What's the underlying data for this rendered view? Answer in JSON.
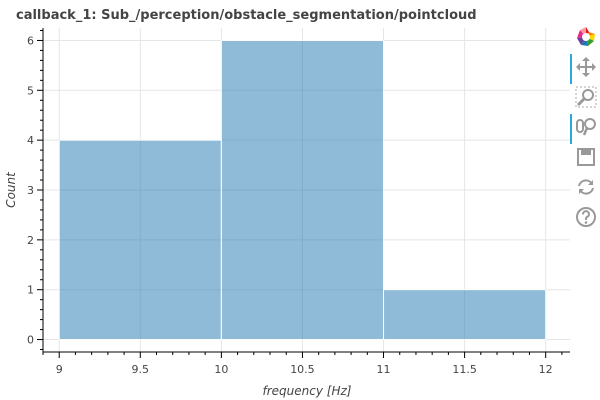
{
  "title": "callback_1: Sub_/perception/obstacle_segmentation/pointcloud",
  "chart_data": {
    "type": "histogram",
    "bins": [
      {
        "left": 9,
        "right": 10,
        "count": 4
      },
      {
        "left": 10,
        "right": 11,
        "count": 6
      },
      {
        "left": 11,
        "right": 12,
        "count": 1
      }
    ],
    "xlabel": "frequency [Hz]",
    "ylabel": "Count",
    "xlim": [
      8.9,
      12.15
    ],
    "ylim": [
      -0.25,
      6.25
    ],
    "x_ticks": [
      "9",
      "9.5",
      "10",
      "10.5",
      "11",
      "11.5",
      "12"
    ],
    "y_ticks": [
      "0",
      "1",
      "2",
      "3",
      "4",
      "5",
      "6"
    ],
    "grid": true,
    "bar_color": "#1f77b4",
    "bar_alpha": 0.5,
    "legend": "none"
  },
  "toolbar": {
    "tools": [
      {
        "name": "bokeh-logo-icon",
        "active": false
      },
      {
        "name": "pan-tool-icon",
        "active": true
      },
      {
        "name": "box-zoom-tool-icon",
        "active": false
      },
      {
        "name": "wheel-zoom-tool-icon",
        "active": true
      },
      {
        "name": "save-tool-icon",
        "active": false
      },
      {
        "name": "reset-tool-icon",
        "active": false
      },
      {
        "name": "help-tool-icon",
        "active": false
      }
    ]
  }
}
